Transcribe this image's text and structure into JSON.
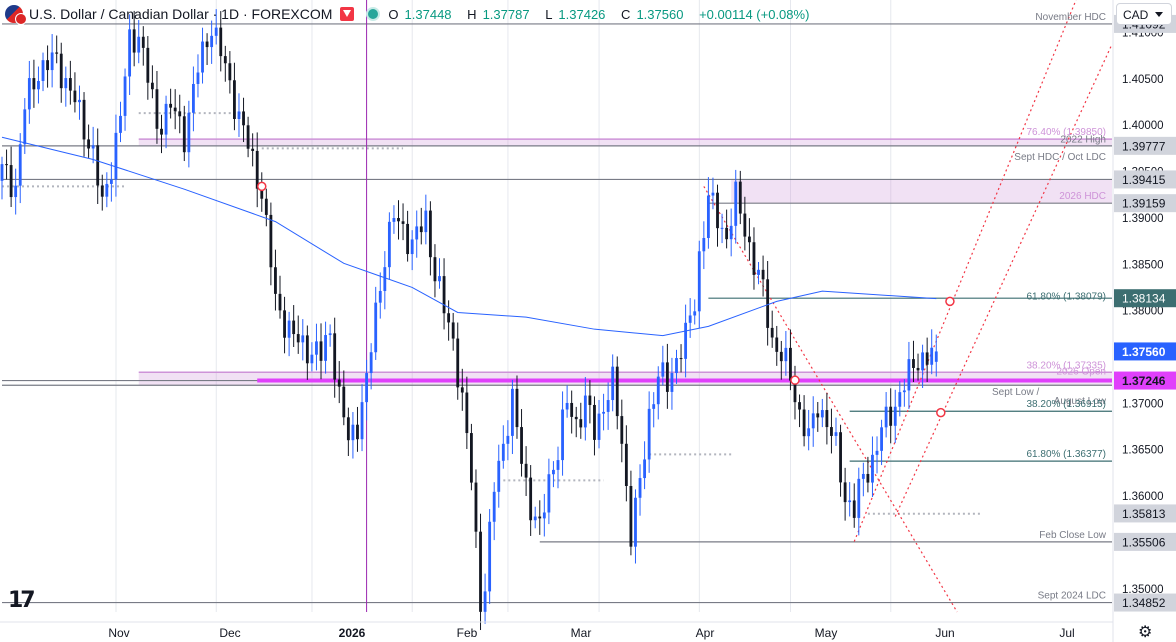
{
  "header": {
    "title": "U.S. Dollar / Canadian Dollar · 1D · FOREXCOM",
    "open_label": "O",
    "open": "1.37448",
    "high_label": "H",
    "high": "1.37787",
    "low_label": "L",
    "low": "1.37426",
    "close_label": "C",
    "close": "1.37560",
    "change": "+0.00114 (+0.08%)"
  },
  "currency_button": "CAD",
  "colors": {
    "up": "#2962ff",
    "down": "#131722",
    "ma": "#2962ff",
    "accent": "#f23645",
    "level": "#3c6e71",
    "gray_level": "#787b86",
    "violet": "#ce93d8",
    "magenta": "#e040fb",
    "fib_dotted": "#f23645"
  },
  "icons": {
    "flag": "usd-cad-flag-icon",
    "alert": "down-arrow-icon",
    "status": "market-open-dot-icon",
    "logo": "tradingview-logo-icon",
    "settings": "gear-icon"
  },
  "chart_data": {
    "type": "candlestick",
    "symbol": "USDCAD",
    "timeframe": "1D",
    "source": "FOREXCOM",
    "ylim": [
      1.3475,
      1.4135
    ],
    "x_ticks": [
      "Nov",
      "Dec",
      "2026",
      "Feb",
      "Mar",
      "Apr",
      "May",
      "Jun",
      "Jul"
    ],
    "y_ticks": [
      "1.35000",
      "1.35500",
      "1.36000",
      "1.36500",
      "1.37000",
      "1.38000",
      "1.38500",
      "1.39000",
      "1.39500",
      "1.40000",
      "1.40500",
      "1.41000"
    ],
    "price_labels": [
      {
        "value": 1.41092,
        "text": "1.41092",
        "style": "gray"
      },
      {
        "value": 1.39777,
        "text": "1.39777",
        "style": "gray"
      },
      {
        "value": 1.39415,
        "text": "1.39415",
        "style": "gray"
      },
      {
        "value": 1.39159,
        "text": "1.39159",
        "style": "gray"
      },
      {
        "value": 1.38134,
        "text": "1.38134",
        "style": "teal"
      },
      {
        "value": 1.3756,
        "text": "1.37560",
        "style": "blue"
      },
      {
        "value": 1.37246,
        "text": "1.37246",
        "style": "magenta"
      },
      {
        "value": 1.35813,
        "text": "1.35813",
        "style": "gray"
      },
      {
        "value": 1.35506,
        "text": "1.35506",
        "style": "gray"
      },
      {
        "value": 1.34852,
        "text": "1.34852",
        "style": "gray"
      }
    ],
    "annotations": [
      {
        "text": "November HDC",
        "value": 1.41092
      },
      {
        "text": "76.40% (1.39850)",
        "value": 1.3985
      },
      {
        "text": "2022 High",
        "value": 1.3977
      },
      {
        "text": "Sept HDC / Oct LDC",
        "value": 1.3958
      },
      {
        "text": "2026 HDC",
        "value": 1.3916
      },
      {
        "text": "61.80% (1.38079)",
        "value": 1.38079
      },
      {
        "text": "38.20% (1.37335)",
        "value": 1.37335
      },
      {
        "text": "2026 Open",
        "value": 1.3727
      },
      {
        "text": "Sept Low / August Low",
        "value": 1.3712
      },
      {
        "text": "38.20% (1.36915)",
        "value": 1.36915
      },
      {
        "text": "61.80% (1.36377)",
        "value": 1.36377
      },
      {
        "text": "Feb Close Low",
        "value": 1.35506
      },
      {
        "text": "Sept 2024 LDC",
        "value": 1.34852
      }
    ],
    "levels": [
      {
        "value": 1.41092,
        "from": 0,
        "style": "gray"
      },
      {
        "value": 1.3985,
        "from": 30,
        "style": "violet"
      },
      {
        "value": 1.39777,
        "from": 0,
        "style": "gray"
      },
      {
        "value": 1.39415,
        "from": 0,
        "style": "gray"
      },
      {
        "value": 1.39159,
        "from": 155,
        "style": "gray"
      },
      {
        "value": 1.38134,
        "from": 155,
        "style": "teal"
      },
      {
        "value": 1.37335,
        "from": 30,
        "style": "violet"
      },
      {
        "value": 1.37246,
        "from": 0,
        "style": "gray"
      },
      {
        "value": 1.37246,
        "from": 56,
        "style": "magenta"
      },
      {
        "value": 1.37195,
        "from": 0,
        "style": "gray"
      },
      {
        "value": 1.36915,
        "from": 186,
        "style": "teal"
      },
      {
        "value": 1.36377,
        "from": 186,
        "style": "teal"
      },
      {
        "value": 1.35506,
        "from": 118,
        "style": "gray"
      },
      {
        "value": 1.34852,
        "from": 0,
        "style": "gray"
      }
    ],
    "zones": [
      {
        "top": 1.3985,
        "bottom": 1.39777,
        "from": 30,
        "color": "violet"
      },
      {
        "top": 1.39415,
        "bottom": 1.39159,
        "from": 160,
        "color": "violet"
      },
      {
        "top": 1.37335,
        "bottom": 1.37195,
        "from": 30,
        "color": "violet"
      }
    ],
    "dotted_refs": [
      {
        "value": 1.3934,
        "from": 0,
        "to": 27
      },
      {
        "value": 1.4013,
        "from": 30,
        "to": 53
      },
      {
        "value": 1.3975,
        "from": 57,
        "to": 88
      },
      {
        "value": 1.3617,
        "from": 110,
        "to": 132
      },
      {
        "value": 1.3645,
        "from": 142,
        "to": 160
      },
      {
        "value": 1.3581,
        "from": 190,
        "to": 215
      }
    ],
    "session_marker_index": 80,
    "channel": {
      "lower": [
        [
          187,
          1.3551
        ],
        [
          206,
          1.3779
        ]
      ],
      "upper": [
        [
          196,
          1.3578
        ],
        [
          220,
          1.3835
        ]
      ],
      "diagonal": [
        [
          154,
          1.3934
        ],
        [
          212,
          1.3455
        ]
      ]
    },
    "circle_markers": [
      {
        "index": 57,
        "value": 1.3934
      },
      {
        "index": 174,
        "value": 1.3725
      },
      {
        "index": 206,
        "value": 1.369
      },
      {
        "index": 208,
        "value": 1.381
      }
    ],
    "moving_average": [
      [
        0,
        1.3987
      ],
      [
        20,
        1.3963
      ],
      [
        40,
        1.3931
      ],
      [
        60,
        1.3896
      ],
      [
        75,
        1.3851
      ],
      [
        90,
        1.3825
      ],
      [
        100,
        1.3798
      ],
      [
        115,
        1.3793
      ],
      [
        130,
        1.378
      ],
      [
        145,
        1.3773
      ],
      [
        155,
        1.3783
      ],
      [
        170,
        1.381
      ],
      [
        180,
        1.3821
      ],
      [
        205,
        1.3813
      ]
    ],
    "anchors": [
      [
        0,
        1.395
      ],
      [
        3,
        1.3935
      ],
      [
        5,
        1.402
      ],
      [
        8,
        1.406
      ],
      [
        12,
        1.407
      ],
      [
        16,
        1.4025
      ],
      [
        20,
        1.397
      ],
      [
        22,
        1.391
      ],
      [
        24,
        1.396
      ],
      [
        26,
        1.401
      ],
      [
        28,
        1.409
      ],
      [
        30,
        1.41
      ],
      [
        32,
        1.405
      ],
      [
        34,
        1.4
      ],
      [
        37,
        1.402
      ],
      [
        40,
        1.399
      ],
      [
        43,
        1.406
      ],
      [
        46,
        1.411
      ],
      [
        49,
        1.406
      ],
      [
        52,
        1.401
      ],
      [
        55,
        1.396
      ],
      [
        57,
        1.393
      ],
      [
        59,
        1.385
      ],
      [
        60,
        1.381
      ],
      [
        62,
        1.379
      ],
      [
        64,
        1.377
      ],
      [
        67,
        1.376
      ],
      [
        70,
        1.375
      ],
      [
        72,
        1.378
      ],
      [
        74,
        1.3705
      ],
      [
        76,
        1.366
      ],
      [
        78,
        1.368
      ],
      [
        80,
        1.372
      ],
      [
        82,
        1.38
      ],
      [
        84,
        1.386
      ],
      [
        86,
        1.39
      ],
      [
        88,
        1.389
      ],
      [
        90,
        1.387
      ],
      [
        93,
        1.39
      ],
      [
        95,
        1.384
      ],
      [
        97,
        1.38
      ],
      [
        99,
        1.377
      ],
      [
        101,
        1.37
      ],
      [
        103,
        1.362
      ],
      [
        105,
        1.349
      ],
      [
        106,
        1.35
      ],
      [
        108,
        1.361
      ],
      [
        110,
        1.366
      ],
      [
        112,
        1.37
      ],
      [
        114,
        1.364
      ],
      [
        116,
        1.359
      ],
      [
        118,
        1.356
      ],
      [
        120,
        1.362
      ],
      [
        122,
        1.365
      ],
      [
        124,
        1.37
      ],
      [
        126,
        1.368
      ],
      [
        128,
        1.37
      ],
      [
        130,
        1.367
      ],
      [
        132,
        1.37
      ],
      [
        134,
        1.372
      ],
      [
        136,
        1.366
      ],
      [
        138,
        1.356
      ],
      [
        140,
        1.361
      ],
      [
        142,
        1.369
      ],
      [
        144,
        1.373
      ],
      [
        146,
        1.372
      ],
      [
        148,
        1.375
      ],
      [
        150,
        1.377
      ],
      [
        152,
        1.381
      ],
      [
        153,
        1.386
      ],
      [
        155,
        1.392
      ],
      [
        157,
        1.39
      ],
      [
        159,
        1.388
      ],
      [
        161,
        1.392
      ],
      [
        163,
        1.389
      ],
      [
        165,
        1.385
      ],
      [
        167,
        1.382
      ],
      [
        169,
        1.377
      ],
      [
        171,
        1.375
      ],
      [
        173,
        1.373
      ],
      [
        175,
        1.369
      ],
      [
        177,
        1.366
      ],
      [
        179,
        1.37
      ],
      [
        181,
        1.368
      ],
      [
        183,
        1.365
      ],
      [
        185,
        1.36
      ],
      [
        187,
        1.3585
      ],
      [
        189,
        1.362
      ],
      [
        191,
        1.364
      ],
      [
        193,
        1.367
      ],
      [
        195,
        1.369
      ],
      [
        197,
        1.371
      ],
      [
        199,
        1.373
      ],
      [
        201,
        1.375
      ],
      [
        203,
        1.3748
      ],
      [
        205,
        1.3756
      ]
    ],
    "last_index": 205,
    "x_range": [
      0,
      244
    ]
  }
}
